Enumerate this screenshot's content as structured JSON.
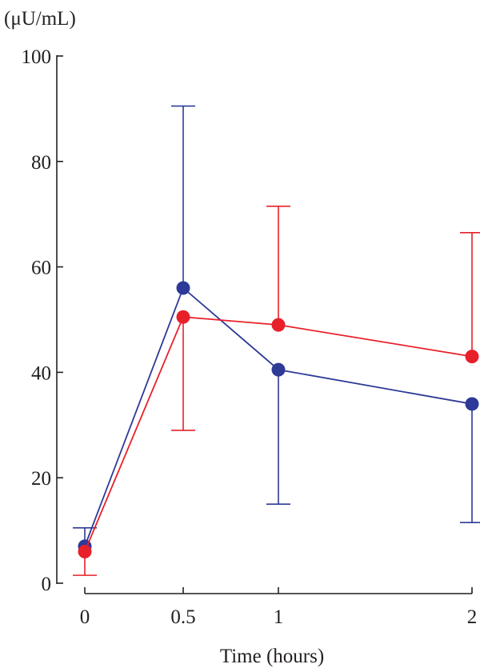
{
  "chart_data": {
    "type": "line",
    "ylabel": "(μU/mL)",
    "xlabel": "Time (hours)",
    "ylim": [
      0,
      100
    ],
    "y_ticks": [
      0,
      20,
      40,
      60,
      80,
      100
    ],
    "x_ticks": [
      0,
      0.5,
      1,
      2
    ],
    "x_tick_labels": [
      "0",
      "0.5",
      "1",
      "2"
    ],
    "grid": false,
    "series": [
      {
        "color": "#2e3a97",
        "x": [
          0,
          0.5,
          1,
          2
        ],
        "values": [
          7,
          56,
          40.5,
          34
        ],
        "error_upper": [
          10.5,
          90.5,
          40.5,
          34
        ],
        "error_lower": [
          7,
          56,
          15,
          11.5
        ]
      },
      {
        "color": "#e8202a",
        "x": [
          0,
          0.5,
          1,
          2
        ],
        "values": [
          6,
          50.5,
          49,
          43
        ],
        "error_upper": [
          6,
          50.5,
          71.5,
          66.5
        ],
        "error_lower": [
          1.5,
          29,
          49,
          43
        ]
      }
    ]
  }
}
